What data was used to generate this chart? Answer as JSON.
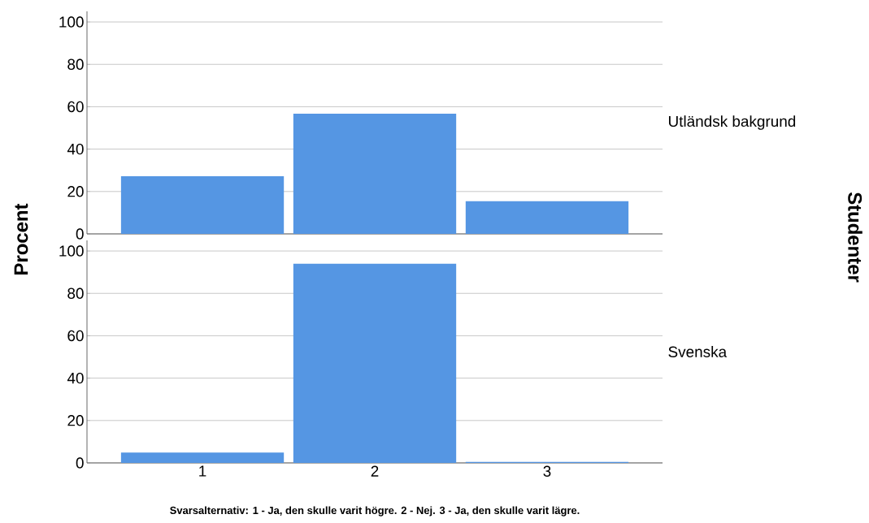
{
  "chart_data": [
    {
      "type": "bar",
      "title": "Utländsk bakgrund",
      "ylabel": "Procent",
      "y2label": "Studenter",
      "categories": [
        "1",
        "2",
        "3"
      ],
      "values": [
        27.2,
        56.7,
        15.4
      ],
      "color": "#5596e3",
      "ylim": [
        0,
        105
      ],
      "yticks": [
        0,
        20,
        40,
        60,
        80,
        100
      ],
      "grid": "y",
      "tick_labels": "y"
    },
    {
      "type": "bar",
      "title": "Svenska",
      "xlabel": "Svarsalternativ: 1 - Ja, den skulle varit högre. 2 - Nej. 3 - Ja, den skulle varit lägre.",
      "categories": [
        "1",
        "2",
        "3"
      ],
      "values": [
        4.9,
        94.0,
        0.5
      ],
      "color": "#5596e3",
      "ylim": [
        0,
        105
      ],
      "yticks": [
        0,
        20,
        40,
        60,
        80,
        100
      ],
      "grid": "y"
    }
  ]
}
